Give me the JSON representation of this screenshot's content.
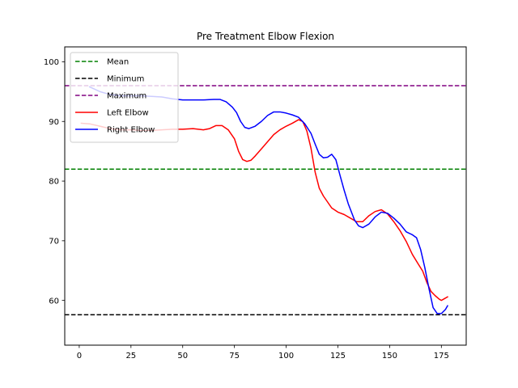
{
  "chart_data": {
    "type": "line",
    "title": "Pre Treatment Elbow Flexion",
    "xlabel": "",
    "ylabel": "",
    "xlim": [
      -7,
      187
    ],
    "ylim": [
      52.5,
      102.5
    ],
    "x_ticks": [
      0,
      25,
      50,
      75,
      100,
      125,
      150,
      175
    ],
    "y_ticks": [
      60,
      70,
      80,
      90,
      100
    ],
    "grid": false,
    "legend_placement": "top-left",
    "reference_lines": [
      {
        "name": "Mean",
        "y": 82.0,
        "color": "#008000",
        "style": "dashed"
      },
      {
        "name": "Minimum",
        "y": 57.6,
        "color": "#000000",
        "style": "dashed"
      },
      {
        "name": "Maximum",
        "y": 96.0,
        "color": "#800080",
        "style": "dashed"
      }
    ],
    "series": [
      {
        "name": "Left Elbow",
        "color": "#ff0000",
        "points": [
          [
            1,
            89.7
          ],
          [
            5,
            89.6
          ],
          [
            10,
            89.2
          ],
          [
            15,
            88.8
          ],
          [
            20,
            88.6
          ],
          [
            25,
            88.6
          ],
          [
            30,
            88.5
          ],
          [
            35,
            88.5
          ],
          [
            40,
            88.6
          ],
          [
            45,
            88.7
          ],
          [
            50,
            88.7
          ],
          [
            55,
            88.8
          ],
          [
            60,
            88.6
          ],
          [
            63,
            88.8
          ],
          [
            66,
            89.3
          ],
          [
            69,
            89.3
          ],
          [
            72,
            88.6
          ],
          [
            75,
            87.1
          ],
          [
            77,
            85.0
          ],
          [
            79,
            83.6
          ],
          [
            81,
            83.3
          ],
          [
            83,
            83.5
          ],
          [
            85,
            84.2
          ],
          [
            88,
            85.4
          ],
          [
            91,
            86.6
          ],
          [
            94,
            87.8
          ],
          [
            97,
            88.6
          ],
          [
            100,
            89.2
          ],
          [
            103,
            89.7
          ],
          [
            106,
            90.3
          ],
          [
            108,
            90.0
          ],
          [
            110,
            88.4
          ],
          [
            112,
            85.5
          ],
          [
            114,
            81.5
          ],
          [
            116,
            78.8
          ],
          [
            118,
            77.5
          ],
          [
            120,
            76.5
          ],
          [
            122,
            75.5
          ],
          [
            125,
            74.8
          ],
          [
            128,
            74.4
          ],
          [
            131,
            73.8
          ],
          [
            134,
            73.2
          ],
          [
            137,
            73.2
          ],
          [
            140,
            74.2
          ],
          [
            143,
            74.9
          ],
          [
            146,
            75.2
          ],
          [
            149,
            74.5
          ],
          [
            152,
            73.2
          ],
          [
            155,
            71.7
          ],
          [
            158,
            69.9
          ],
          [
            161,
            67.7
          ],
          [
            164,
            66.0
          ],
          [
            166,
            64.9
          ],
          [
            168,
            63.0
          ],
          [
            170,
            61.5
          ],
          [
            172,
            60.8
          ],
          [
            174,
            60.2
          ],
          [
            175,
            60.0
          ],
          [
            176,
            60.2
          ],
          [
            178,
            60.6
          ]
        ]
      },
      {
        "name": "Right Elbow",
        "color": "#0000ff",
        "points": [
          [
            5,
            95.8
          ],
          [
            10,
            95.0
          ],
          [
            15,
            94.5
          ],
          [
            20,
            94.3
          ],
          [
            25,
            94.3
          ],
          [
            30,
            94.3
          ],
          [
            35,
            94.2
          ],
          [
            40,
            94.1
          ],
          [
            45,
            93.8
          ],
          [
            50,
            93.6
          ],
          [
            55,
            93.6
          ],
          [
            60,
            93.6
          ],
          [
            65,
            93.7
          ],
          [
            68,
            93.7
          ],
          [
            71,
            93.3
          ],
          [
            74,
            92.4
          ],
          [
            76,
            91.5
          ],
          [
            78,
            90.0
          ],
          [
            80,
            89.0
          ],
          [
            82,
            88.8
          ],
          [
            85,
            89.2
          ],
          [
            88,
            90.0
          ],
          [
            91,
            91.0
          ],
          [
            94,
            91.6
          ],
          [
            97,
            91.6
          ],
          [
            100,
            91.4
          ],
          [
            103,
            91.1
          ],
          [
            106,
            90.7
          ],
          [
            109,
            89.6
          ],
          [
            112,
            88.0
          ],
          [
            114,
            86.2
          ],
          [
            116,
            84.5
          ],
          [
            118,
            83.9
          ],
          [
            120,
            84.0
          ],
          [
            122,
            84.5
          ],
          [
            124,
            83.6
          ],
          [
            126,
            81.0
          ],
          [
            128,
            78.5
          ],
          [
            130,
            76.2
          ],
          [
            133,
            73.5
          ],
          [
            135,
            72.5
          ],
          [
            137,
            72.2
          ],
          [
            140,
            72.8
          ],
          [
            143,
            74.0
          ],
          [
            146,
            74.8
          ],
          [
            149,
            74.6
          ],
          [
            152,
            73.8
          ],
          [
            155,
            72.8
          ],
          [
            158,
            71.5
          ],
          [
            161,
            71.0
          ],
          [
            163,
            70.5
          ],
          [
            165,
            68.5
          ],
          [
            167,
            65.5
          ],
          [
            169,
            62.0
          ],
          [
            171,
            58.8
          ],
          [
            173,
            57.8
          ],
          [
            175,
            57.8
          ],
          [
            177,
            58.5
          ],
          [
            178,
            59.1
          ]
        ]
      }
    ]
  }
}
